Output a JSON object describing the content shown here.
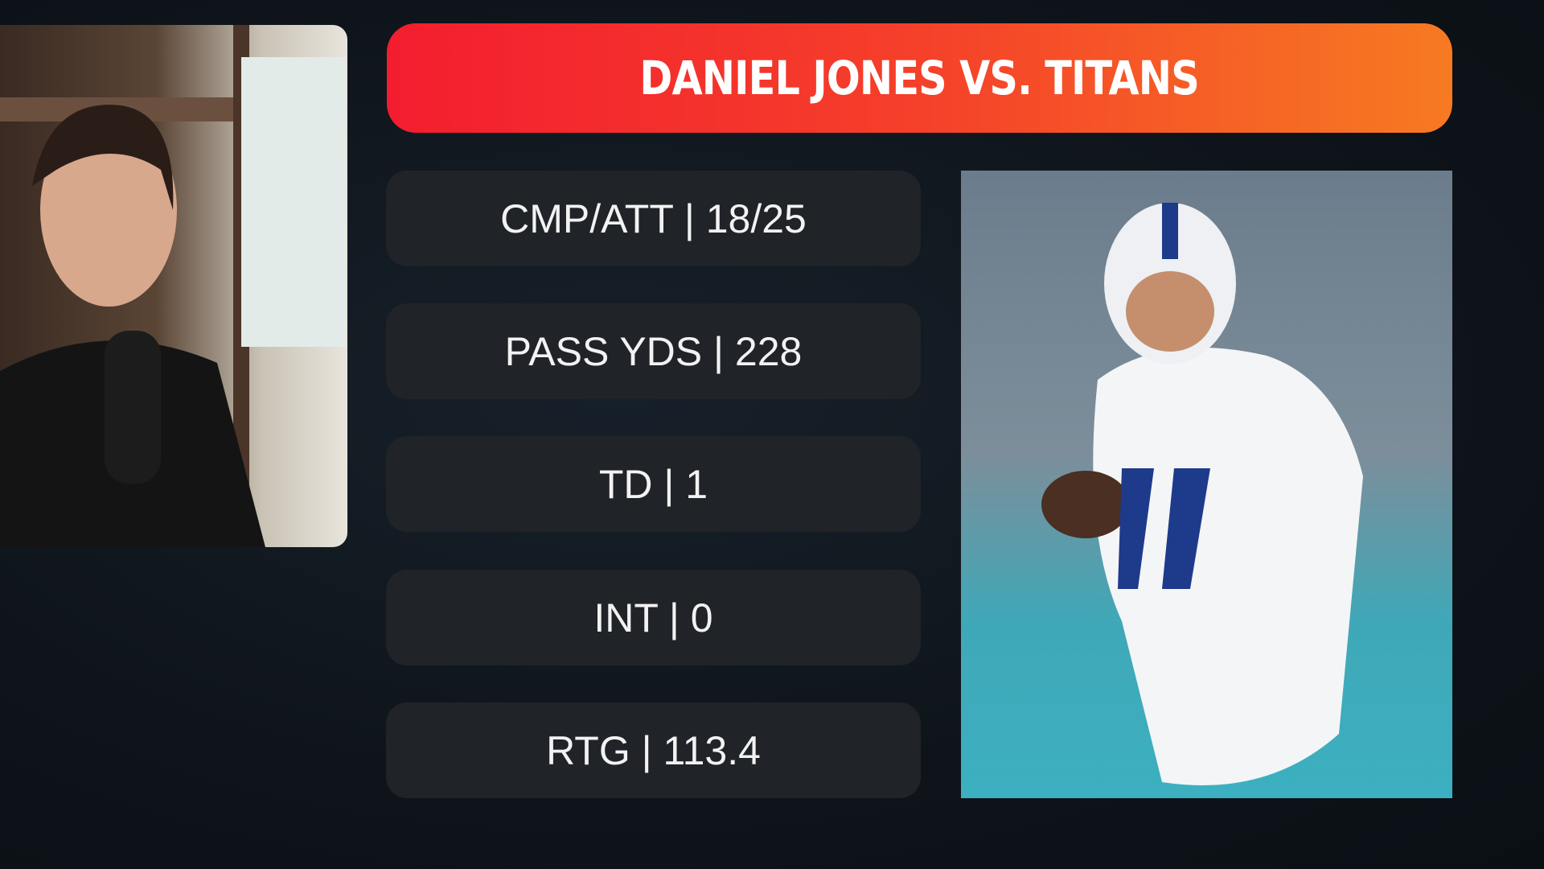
{
  "header": {
    "title": "DANIEL JONES VS. TITANS"
  },
  "stats": [
    "CMP/ATT | 18/25",
    "PASS YDS | 228",
    "TD | 1",
    "INT | 0",
    "RTG | 113.4"
  ]
}
